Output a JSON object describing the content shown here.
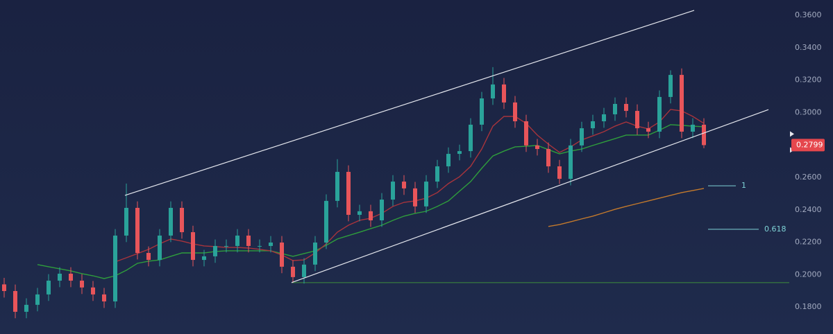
{
  "chart_data": {
    "type": "candlestick",
    "ylim": [
      0.1634,
      0.3694
    ],
    "yticks": [
      {
        "value": 0.18,
        "label": "0.1800"
      },
      {
        "value": 0.2,
        "label": "0.2000"
      },
      {
        "value": 0.22,
        "label": "0.2200"
      },
      {
        "value": 0.24,
        "label": "0.2400"
      },
      {
        "value": 0.26,
        "label": "0.2600"
      },
      {
        "value": 0.28,
        "label": "0.2800"
      },
      {
        "value": 0.3,
        "label": "0.3000"
      },
      {
        "value": 0.32,
        "label": "0.3200"
      },
      {
        "value": 0.34,
        "label": "0.3400"
      },
      {
        "value": 0.36,
        "label": "0.3600"
      }
    ],
    "up_color": "#2aa39a",
    "down_color": "#e8555a",
    "open": [
      0.194,
      0.1899,
      0.1771,
      0.1814,
      0.1878,
      0.1963,
      0.2006,
      0.1963,
      0.1921,
      0.1878,
      0.1835,
      0.2241,
      0.2412,
      0.2134,
      0.2091,
      0.2241,
      0.2412,
      0.2262,
      0.2091,
      0.2113,
      0.2177,
      0.2177,
      0.2241,
      0.2177,
      0.2177,
      0.2198,
      0.2049,
      0.1985,
      0.2062,
      0.2198,
      0.2455,
      0.2634,
      0.2369,
      0.2391,
      0.2335,
      0.2463,
      0.2574,
      0.2532,
      0.2421,
      0.2574,
      0.2668,
      0.2745,
      0.2762,
      0.2925,
      0.3087,
      0.3173,
      0.3062,
      0.2946,
      0.2797,
      0.2775,
      0.2668,
      0.2591,
      0.2797,
      0.2903,
      0.2946,
      0.2989,
      0.3053,
      0.301,
      0.2903,
      0.2882,
      0.3096,
      0.3232,
      0.2882,
      0.2925
    ],
    "high": [
      0.198,
      0.1939,
      0.1854,
      0.1918,
      0.2003,
      0.2046,
      0.2046,
      0.2003,
      0.1961,
      0.1918,
      0.2281,
      0.2562,
      0.2452,
      0.2174,
      0.2281,
      0.2452,
      0.2452,
      0.2302,
      0.2153,
      0.2217,
      0.2217,
      0.2281,
      0.2281,
      0.2217,
      0.2238,
      0.2238,
      0.2089,
      0.2102,
      0.2238,
      0.2495,
      0.2712,
      0.2674,
      0.2431,
      0.2431,
      0.2503,
      0.2614,
      0.2614,
      0.2572,
      0.2614,
      0.2708,
      0.2785,
      0.2802,
      0.2965,
      0.3127,
      0.328,
      0.3213,
      0.3102,
      0.2986,
      0.2837,
      0.2815,
      0.2708,
      0.2837,
      0.2943,
      0.2986,
      0.3029,
      0.3093,
      0.3093,
      0.305,
      0.2943,
      0.3136,
      0.326,
      0.3272,
      0.2965,
      0.2965
    ],
    "low": [
      0.1859,
      0.1731,
      0.1731,
      0.1774,
      0.1838,
      0.1923,
      0.1923,
      0.1881,
      0.1838,
      0.1795,
      0.1795,
      0.2201,
      0.2094,
      0.2051,
      0.2051,
      0.2201,
      0.2222,
      0.2051,
      0.2051,
      0.2073,
      0.2137,
      0.2137,
      0.2137,
      0.2137,
      0.2137,
      0.2009,
      0.1951,
      0.1945,
      0.2022,
      0.2158,
      0.2415,
      0.2329,
      0.2329,
      0.2295,
      0.2295,
      0.2423,
      0.2492,
      0.2381,
      0.2381,
      0.2534,
      0.2628,
      0.2705,
      0.2722,
      0.2885,
      0.3047,
      0.3022,
      0.2906,
      0.2757,
      0.2735,
      0.2628,
      0.256,
      0.2551,
      0.2757,
      0.2863,
      0.2906,
      0.2949,
      0.297,
      0.2863,
      0.2842,
      0.2842,
      0.3056,
      0.2842,
      0.2842,
      0.278
    ],
    "close": [
      0.1899,
      0.1771,
      0.1814,
      0.1878,
      0.1963,
      0.2006,
      0.1963,
      0.1921,
      0.1878,
      0.1835,
      0.2241,
      0.2412,
      0.2134,
      0.2091,
      0.2241,
      0.2412,
      0.2262,
      0.2091,
      0.2113,
      0.2177,
      0.2177,
      0.2241,
      0.2177,
      0.2177,
      0.2198,
      0.2049,
      0.1985,
      0.2062,
      0.2198,
      0.2455,
      0.2634,
      0.2369,
      0.2391,
      0.2335,
      0.2463,
      0.2574,
      0.2532,
      0.2421,
      0.2574,
      0.2668,
      0.2745,
      0.2762,
      0.2925,
      0.3087,
      0.3173,
      0.3062,
      0.2946,
      0.2797,
      0.2775,
      0.2668,
      0.2591,
      0.2797,
      0.2903,
      0.2946,
      0.2989,
      0.3053,
      0.301,
      0.2903,
      0.2882,
      0.3096,
      0.3232,
      0.2882,
      0.2925,
      0.2799
    ],
    "series": [
      {
        "color": "#2f9e3c",
        "values": [
          null,
          null,
          null,
          0.2062,
          0.2049,
          0.2036,
          0.2023,
          0.2006,
          0.1993,
          0.1976,
          0.1993,
          0.2027,
          0.207,
          0.2083,
          0.2091,
          0.2113,
          0.2134,
          0.2134,
          0.2134,
          0.2143,
          0.2147,
          0.2147,
          0.2147,
          0.2147,
          0.2147,
          0.213,
          0.2113,
          0.213,
          0.2147,
          0.2181,
          0.222,
          0.2241,
          0.2262,
          0.2284,
          0.2305,
          0.2335,
          0.2361,
          0.2378,
          0.2391,
          0.2421,
          0.2455,
          0.2515,
          0.2574,
          0.2656,
          0.2732,
          0.2762,
          0.2788,
          0.2792,
          0.2797,
          0.2771,
          0.2745,
          0.2762,
          0.2775,
          0.2797,
          0.2818,
          0.2839,
          0.2861,
          0.2861,
          0.2861,
          0.2891,
          0.2925,
          0.2921,
          0.2916,
          0.2912
        ]
      },
      {
        "color": "#a8343c",
        "values": [
          null,
          null,
          null,
          null,
          null,
          null,
          null,
          null,
          null,
          null,
          0.2079,
          0.2104,
          0.213,
          0.2156,
          0.219,
          0.222,
          0.2207,
          0.219,
          0.2177,
          0.2173,
          0.2168,
          0.2168,
          0.2164,
          0.2156,
          0.2147,
          0.2121,
          0.2087,
          0.2091,
          0.2134,
          0.219,
          0.2262,
          0.2305,
          0.2335,
          0.2348,
          0.2378,
          0.2421,
          0.2446,
          0.2455,
          0.2472,
          0.2506,
          0.2562,
          0.2604,
          0.2668,
          0.2775,
          0.2916,
          0.2976,
          0.2976,
          0.2933,
          0.2861,
          0.2805,
          0.2754,
          0.2788,
          0.2831,
          0.2856,
          0.2882,
          0.2916,
          0.2942,
          0.2916,
          0.2899,
          0.2942,
          0.3019,
          0.301,
          0.2976,
          0.2933
        ]
      },
      {
        "color": "#c47a2c",
        "values": [
          null,
          null,
          null,
          null,
          null,
          null,
          null,
          null,
          null,
          null,
          null,
          null,
          null,
          null,
          null,
          null,
          null,
          null,
          null,
          null,
          null,
          null,
          null,
          null,
          null,
          null,
          null,
          null,
          null,
          null,
          null,
          null,
          null,
          null,
          null,
          null,
          null,
          null,
          null,
          null,
          null,
          null,
          null,
          null,
          null,
          null,
          null,
          null,
          null,
          0.2297,
          0.2309,
          0.2326,
          0.2344,
          0.2361,
          0.2382,
          0.2403,
          0.2421,
          0.2438,
          0.2455,
          0.2472,
          0.2489,
          0.2506,
          0.2519,
          0.2532
        ]
      }
    ],
    "trendlines": [
      {
        "x": [
          10.875,
          62.125
        ],
        "y": [
          0.2489,
          0.363
        ]
      },
      {
        "x": [
          25.875,
          68.8125
        ],
        "y": [
          0.1951,
          0.3018
        ]
      }
    ],
    "support": 0.1951,
    "fib_levels": [
      {
        "label": "1",
        "value": 0.2548
      },
      {
        "label": "0.618",
        "value": 0.228
      }
    ],
    "last_price": 0.2799
  }
}
